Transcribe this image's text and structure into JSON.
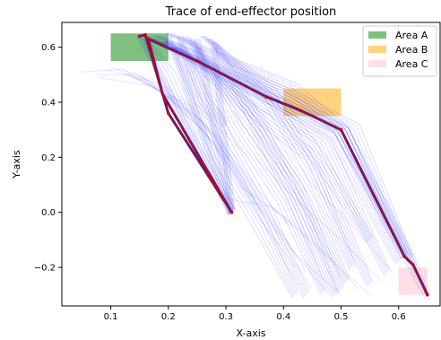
{
  "chart_data": {
    "type": "line",
    "title": "Trace of end-effector position",
    "xlabel": "X-axis",
    "ylabel": "Y-axis",
    "xlim": [
      0.015,
      0.672
    ],
    "ylim": [
      -0.34,
      0.69
    ],
    "xticks": [
      0.1,
      0.2,
      0.3,
      0.4,
      0.5,
      0.6
    ],
    "yticks": [
      -0.2,
      0.0,
      0.2,
      0.4,
      0.6
    ],
    "xtick_labels": [
      "0.1",
      "0.2",
      "0.3",
      "0.4",
      "0.5",
      "0.6"
    ],
    "ytick_labels": [
      "−0.2",
      "0.0",
      "0.2",
      "0.4",
      "0.6"
    ],
    "grid": false,
    "legend_position": "top-right",
    "areas": [
      {
        "name": "Area A",
        "color": "#008000",
        "alpha": 0.5,
        "x": [
          0.1,
          0.2
        ],
        "y": [
          0.55,
          0.65
        ]
      },
      {
        "name": "Area B",
        "color": "#ffa500",
        "alpha": 0.5,
        "x": [
          0.4,
          0.5
        ],
        "y": [
          0.35,
          0.45
        ]
      },
      {
        "name": "Area C",
        "color": "#ffc0cb",
        "alpha": 0.5,
        "x": [
          0.6,
          0.65
        ],
        "y": [
          -0.3,
          -0.2
        ]
      }
    ],
    "highlight_path": {
      "color": "#cc0000",
      "x": [
        0.15,
        0.16,
        0.2,
        0.31,
        0.19,
        0.165,
        0.25,
        0.37,
        0.43,
        0.5,
        0.61,
        0.625,
        0.65
      ],
      "y": [
        0.64,
        0.645,
        0.36,
        0.0,
        0.43,
        0.63,
        0.55,
        0.42,
        0.37,
        0.3,
        -0.16,
        -0.19,
        -0.3
      ]
    },
    "trace_color": "#0000ff",
    "trace_bundles": [
      {
        "x": [
          0.15,
          0.31
        ],
        "y": [
          0.64,
          0.0
        ]
      },
      {
        "x": [
          0.2,
          0.31
        ],
        "y": [
          0.64,
          0.0
        ]
      },
      {
        "x": [
          0.25,
          0.31
        ],
        "y": [
          0.63,
          0.0
        ]
      },
      {
        "x": [
          0.28,
          0.31
        ],
        "y": [
          0.6,
          0.0
        ]
      },
      {
        "x": [
          0.16,
          0.2,
          0.31
        ],
        "y": [
          0.63,
          0.5,
          0.0
        ]
      },
      {
        "x": [
          0.22,
          0.26,
          0.3
        ],
        "y": [
          0.64,
          0.4,
          0.32
        ]
      },
      {
        "x": [
          0.17,
          0.37,
          0.5,
          0.61
        ],
        "y": [
          0.63,
          0.42,
          0.3,
          -0.16
        ]
      },
      {
        "x": [
          0.19,
          0.38,
          0.49,
          0.6
        ],
        "y": [
          0.62,
          0.41,
          0.28,
          -0.18
        ]
      },
      {
        "x": [
          0.21,
          0.36,
          0.47,
          0.58
        ],
        "y": [
          0.6,
          0.4,
          0.26,
          -0.22
        ]
      },
      {
        "x": [
          0.2,
          0.34,
          0.45,
          0.55
        ],
        "y": [
          0.62,
          0.38,
          0.2,
          -0.26
        ]
      },
      {
        "x": [
          0.23,
          0.33,
          0.42,
          0.5
        ],
        "y": [
          0.64,
          0.36,
          0.1,
          -0.28
        ]
      },
      {
        "x": [
          0.24,
          0.32,
          0.4,
          0.47
        ],
        "y": [
          0.63,
          0.3,
          0.05,
          -0.29
        ]
      },
      {
        "x": [
          0.22,
          0.3,
          0.37,
          0.44
        ],
        "y": [
          0.62,
          0.26,
          0.0,
          -0.3
        ]
      },
      {
        "x": [
          0.21,
          0.29,
          0.36,
          0.42
        ],
        "y": [
          0.6,
          0.2,
          -0.05,
          -0.3
        ]
      },
      {
        "x": [
          0.26,
          0.37,
          0.46,
          0.55
        ],
        "y": [
          0.64,
          0.45,
          0.2,
          -0.1
        ]
      },
      {
        "x": [
          0.27,
          0.38,
          0.45,
          0.52
        ],
        "y": [
          0.63,
          0.4,
          0.15,
          -0.2
        ]
      },
      {
        "x": [
          0.25,
          0.35,
          0.44,
          0.51
        ],
        "y": [
          0.6,
          0.35,
          0.05,
          -0.25
        ]
      },
      {
        "x": [
          0.28,
          0.36,
          0.43,
          0.49
        ],
        "y": [
          0.62,
          0.3,
          0.0,
          -0.3
        ]
      },
      {
        "x": [
          0.18,
          0.4,
          0.52,
          0.62
        ],
        "y": [
          0.64,
          0.44,
          0.31,
          -0.17
        ]
      },
      {
        "x": [
          0.2,
          0.41,
          0.5,
          0.63
        ],
        "y": [
          0.65,
          0.46,
          0.3,
          -0.2
        ]
      },
      {
        "x": [
          0.16,
          0.4,
          0.5,
          0.65
        ],
        "y": [
          0.64,
          0.42,
          0.3,
          -0.3
        ]
      }
    ],
    "faint_traces": [
      {
        "x": [
          0.05,
          0.12,
          0.2,
          0.28,
          0.34
        ],
        "y": [
          0.51,
          0.52,
          0.45,
          0.32,
          0.2
        ]
      },
      {
        "x": [
          0.07,
          0.14,
          0.22,
          0.3,
          0.35
        ],
        "y": [
          0.5,
          0.5,
          0.4,
          0.25,
          0.1
        ]
      },
      {
        "x": [
          0.09,
          0.16,
          0.24,
          0.31,
          0.36
        ],
        "y": [
          0.52,
          0.48,
          0.35,
          0.15,
          0.0
        ]
      },
      {
        "x": [
          0.1,
          0.18,
          0.26,
          0.33,
          0.4
        ],
        "y": [
          0.53,
          0.45,
          0.3,
          0.1,
          -0.1
        ]
      },
      {
        "x": [
          0.12,
          0.2,
          0.28,
          0.35,
          0.42
        ],
        "y": [
          0.52,
          0.42,
          0.25,
          0.0,
          -0.2
        ]
      },
      {
        "x": [
          0.14,
          0.22,
          0.3,
          0.38,
          0.45
        ],
        "y": [
          0.51,
          0.4,
          0.2,
          -0.05,
          -0.28
        ]
      },
      {
        "x": [
          0.15,
          0.24,
          0.32,
          0.4,
          0.48
        ],
        "y": [
          0.5,
          0.38,
          0.15,
          -0.1,
          -0.3
        ]
      },
      {
        "x": [
          0.17,
          0.25,
          0.34,
          0.42,
          0.5
        ],
        "y": [
          0.49,
          0.35,
          0.1,
          -0.15,
          -0.3
        ]
      },
      {
        "x": [
          0.08,
          0.17,
          0.26,
          0.34,
          0.41
        ],
        "y": [
          0.49,
          0.46,
          0.33,
          0.12,
          -0.05
        ]
      },
      {
        "x": [
          0.13,
          0.21,
          0.29,
          0.37,
          0.44
        ],
        "y": [
          0.5,
          0.41,
          0.26,
          0.02,
          -0.22
        ]
      },
      {
        "x": [
          0.3,
          0.38,
          0.46,
          0.53
        ],
        "y": [
          0.05,
          0.02,
          -0.12,
          -0.28
        ]
      },
      {
        "x": [
          0.32,
          0.39,
          0.47,
          0.55
        ],
        "y": [
          0.1,
          0.0,
          -0.15,
          -0.3
        ]
      },
      {
        "x": [
          0.35,
          0.42,
          0.5,
          0.57
        ],
        "y": [
          0.2,
          0.05,
          -0.1,
          -0.25
        ]
      },
      {
        "x": [
          0.4,
          0.45,
          0.52,
          0.59
        ],
        "y": [
          0.25,
          0.1,
          -0.05,
          -0.22
        ]
      }
    ],
    "legend": [
      {
        "label": "Area A",
        "color": "#008000"
      },
      {
        "label": "Area B",
        "color": "#ffa500"
      },
      {
        "label": "Area C",
        "color": "#ffc0cb"
      }
    ]
  }
}
